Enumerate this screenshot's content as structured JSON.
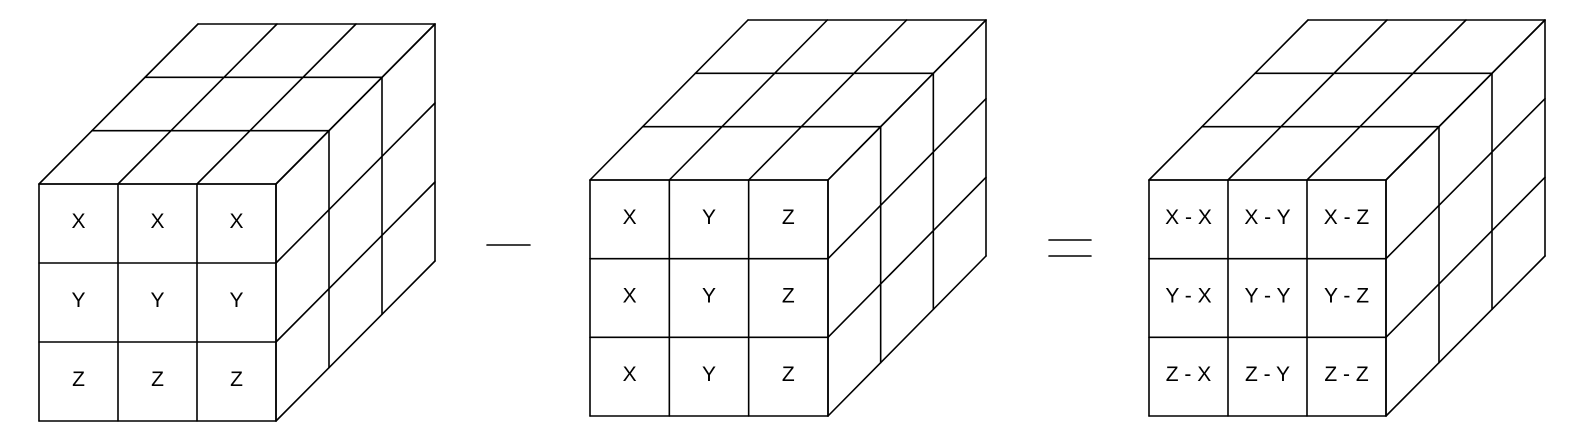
{
  "figure": {
    "operator_minus": "−",
    "operator_equals": "=",
    "cubes": [
      {
        "name": "cube-left",
        "front_face": [
          [
            "X",
            "X",
            "X"
          ],
          [
            "Y",
            "Y",
            "Y"
          ],
          [
            "Z",
            "Z",
            "Z"
          ]
        ]
      },
      {
        "name": "cube-middle",
        "front_face": [
          [
            "X",
            "Y",
            "Z"
          ],
          [
            "X",
            "Y",
            "Z"
          ],
          [
            "X",
            "Y",
            "Z"
          ]
        ]
      },
      {
        "name": "cube-result",
        "front_face": [
          [
            "X - X",
            "X - Y",
            "X - Z"
          ],
          [
            "Y - X",
            "Y - Y",
            "Y - Z"
          ],
          [
            "Z - X",
            "Z - Y",
            "Z - Z"
          ]
        ]
      }
    ]
  },
  "colors": {
    "stroke": "#000000",
    "background": "#ffffff"
  }
}
